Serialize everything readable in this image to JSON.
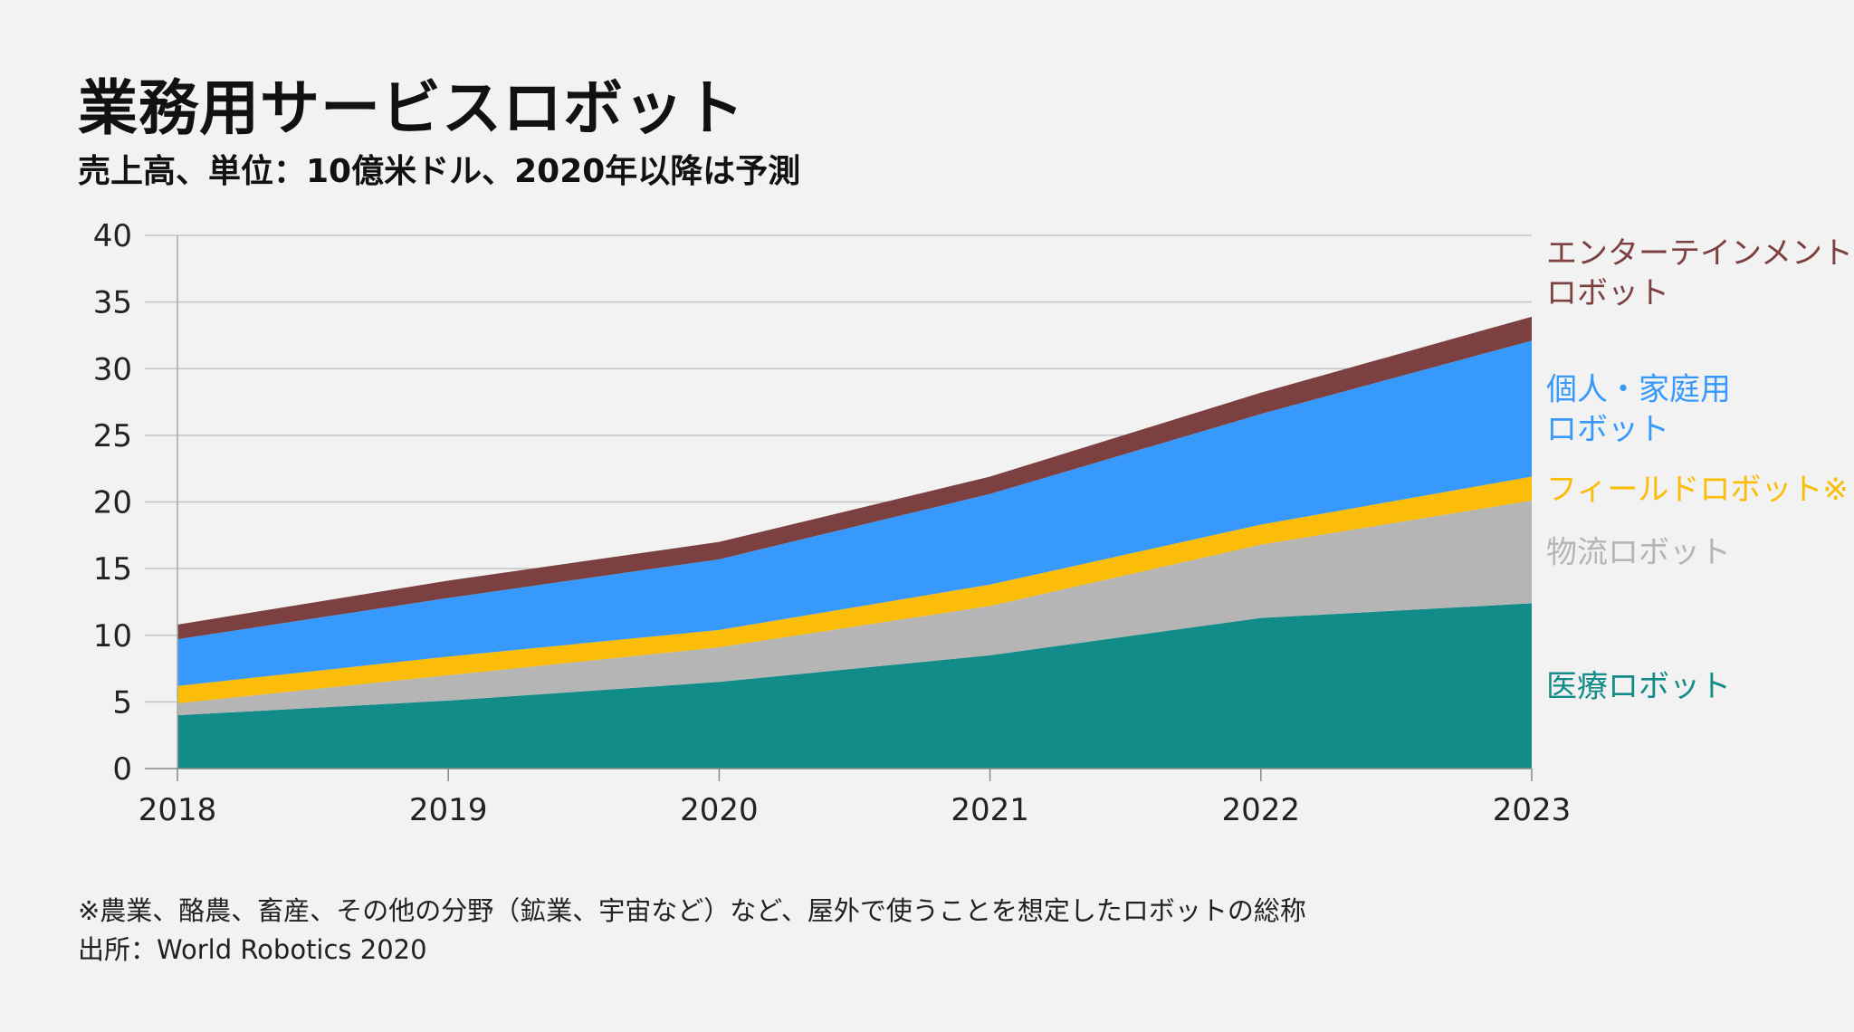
{
  "title": "業務用サービスロボット",
  "subtitle": "売上高、単位：10億米ドル、2020年以降は予測",
  "footnote": "※農業、酪農、畜産、その他の分野（鉱業、宇宙など）など、屋外で使うことを想定したロボットの総称",
  "source": "出所：World Robotics 2020",
  "chart_data": {
    "type": "area",
    "stacked": true,
    "x": [
      "2018",
      "2019",
      "2020",
      "2021",
      "2022",
      "2023"
    ],
    "ylim": [
      0,
      40
    ],
    "yticks": [
      "0",
      "5",
      "10",
      "15",
      "20",
      "25",
      "30",
      "35",
      "40"
    ],
    "grid": true,
    "series": [
      {
        "name": "医療ロボット",
        "label_lines": [
          "医療ロボット"
        ],
        "color": "#128c89",
        "values": [
          4.0,
          5.1,
          6.5,
          8.5,
          11.3,
          12.4
        ]
      },
      {
        "name": "物流ロボット",
        "label_lines": [
          "物流ロボット"
        ],
        "color": "#b5b5b5",
        "values": [
          0.9,
          1.9,
          2.6,
          3.7,
          5.5,
          7.7
        ]
      },
      {
        "name": "フィールドロボット※",
        "label_lines": [
          "フィールドロボット※"
        ],
        "color": "#fbbd08",
        "values": [
          1.3,
          1.4,
          1.3,
          1.6,
          1.5,
          1.8
        ]
      },
      {
        "name": "個人・家庭用ロボット",
        "label_lines": [
          "個人・家庭用",
          "ロボット"
        ],
        "color": "#3799fb",
        "values": [
          3.5,
          4.4,
          5.3,
          6.8,
          8.3,
          10.2
        ]
      },
      {
        "name": "エンターテインメントロボット",
        "label_lines": [
          "エンターテインメント",
          "ロボット"
        ],
        "color": "#7d4040",
        "values": [
          1.1,
          1.3,
          1.3,
          1.3,
          1.6,
          1.8
        ]
      }
    ]
  }
}
